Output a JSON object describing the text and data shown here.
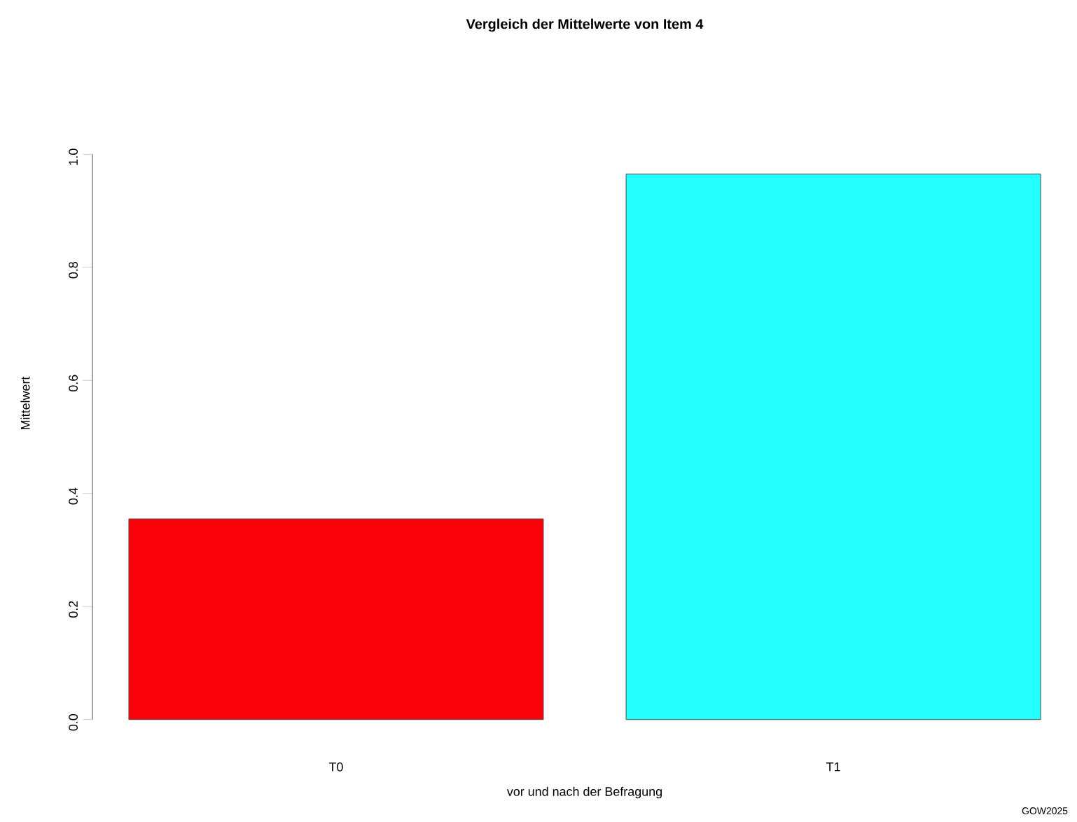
{
  "chart_data": {
    "type": "bar",
    "title": "Vergleich der Mittelwerte von Item 4",
    "xlabel": "vor und nach der Befragung",
    "ylabel": "Mittelwert",
    "categories": [
      "T0",
      "T1"
    ],
    "values": [
      0.355,
      0.965
    ],
    "colors": [
      "#fa0007",
      "#22fffe"
    ],
    "ylim": [
      0,
      1
    ],
    "yticks": [
      {
        "value": 0,
        "label": "0.0"
      },
      {
        "value": 0.2,
        "label": "0.2"
      },
      {
        "value": 0.4,
        "label": "0.4"
      },
      {
        "value": 0.6,
        "label": "0.6"
      },
      {
        "value": 0.8,
        "label": "0.8"
      },
      {
        "value": 1,
        "label": "1.0"
      }
    ],
    "annotations": [
      "GOW2025"
    ]
  }
}
